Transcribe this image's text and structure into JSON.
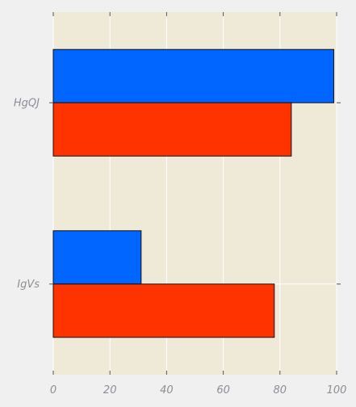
{
  "chart_data": {
    "type": "bar",
    "orientation": "horizontal",
    "categories": [
      "HgQJ",
      "IgVs"
    ],
    "series": [
      {
        "values": [
          99,
          31
        ],
        "color": "#0066ff"
      },
      {
        "values": [
          84,
          78
        ],
        "color": "#ff3300"
      }
    ],
    "xlim": [
      0,
      100
    ],
    "xticks": [
      0,
      20,
      40,
      60,
      80,
      100
    ],
    "grid": true,
    "legend": "none",
    "plot_background": "#efe9d7",
    "figure_background": "#f0f0f0",
    "grid_color": "#ffffff"
  }
}
